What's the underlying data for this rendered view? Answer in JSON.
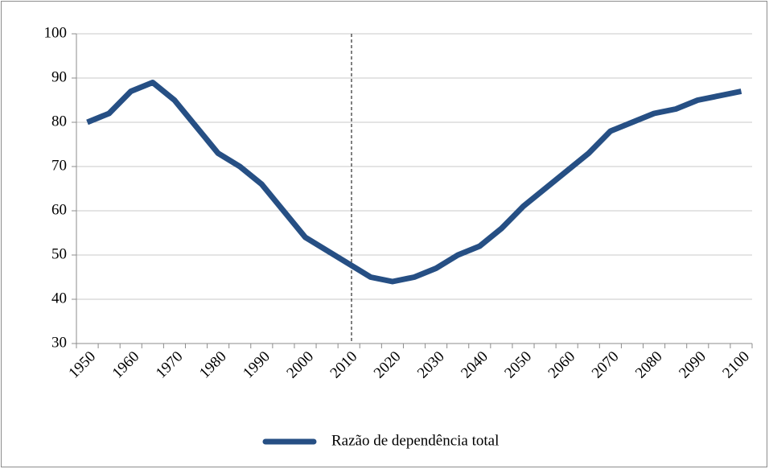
{
  "chart_data": {
    "type": "line",
    "categories": [
      "1950",
      null,
      "1960",
      null,
      "1970",
      null,
      "1980",
      null,
      "1990",
      null,
      "2000",
      null,
      "2010",
      null,
      "2020",
      null,
      "2030",
      null,
      "2040",
      null,
      "2050",
      null,
      "2060",
      null,
      "2070",
      null,
      "2080",
      null,
      "2090",
      null,
      "2100"
    ],
    "series": [
      {
        "name": "Razão de dependência total",
        "color": "#264f84",
        "values": [
          80,
          82,
          87,
          89,
          85,
          79,
          73,
          70,
          66,
          60,
          54,
          51,
          48,
          45,
          44,
          45,
          47,
          50,
          52,
          56,
          61,
          65,
          69,
          73,
          78,
          80,
          82,
          83,
          85,
          86,
          87
        ]
      }
    ],
    "ylim": [
      30,
      100
    ],
    "yticks": [
      30,
      40,
      50,
      60,
      70,
      80,
      90,
      100
    ],
    "grid": true,
    "legend": "bottom"
  }
}
